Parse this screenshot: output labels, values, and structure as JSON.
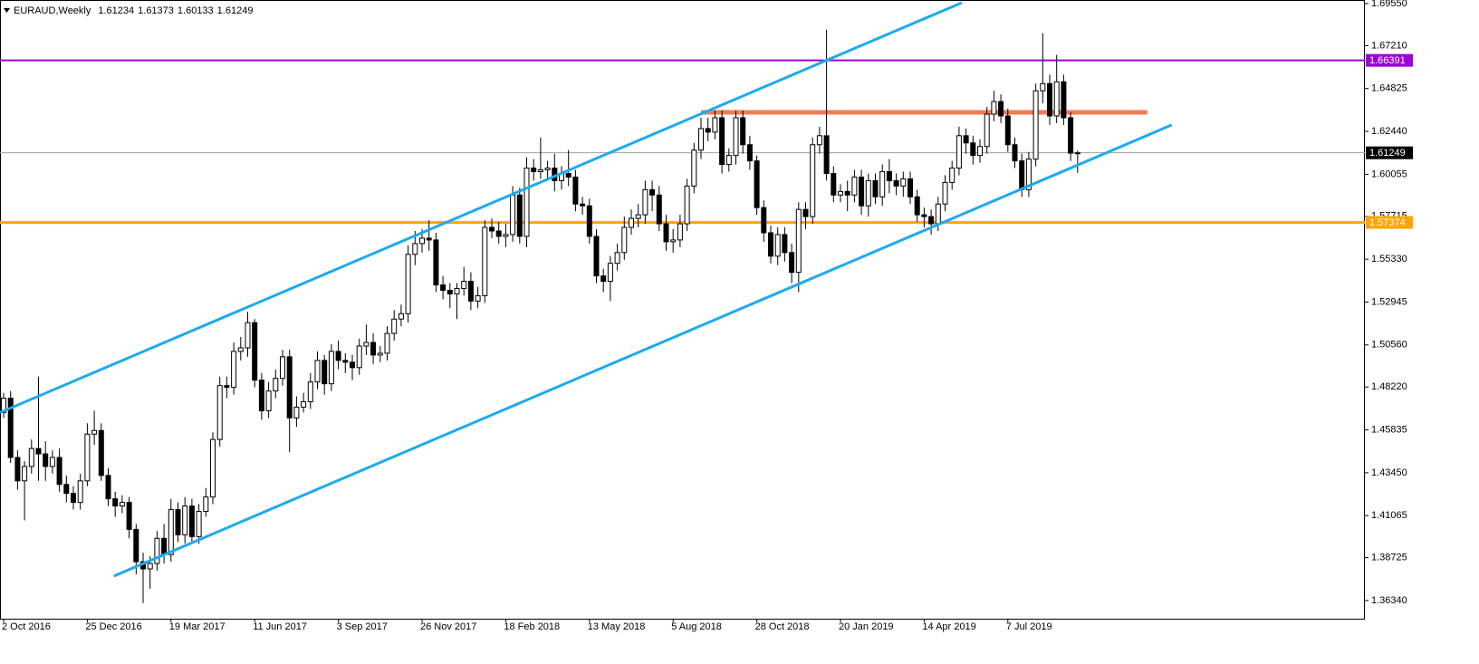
{
  "chart_data": {
    "type": "candlestick",
    "symbol": "EURAUD,Weekly",
    "categories": [
      "2 Oct 2016",
      null,
      null,
      null,
      null,
      null,
      null,
      null,
      null,
      null,
      null,
      null,
      "25 Dec 2016",
      null,
      null,
      null,
      null,
      null,
      null,
      null,
      null,
      null,
      null,
      null,
      "19 Mar 2017",
      null,
      null,
      null,
      null,
      null,
      null,
      null,
      null,
      null,
      null,
      null,
      "11 Jun 2017",
      null,
      null,
      null,
      null,
      null,
      null,
      null,
      null,
      null,
      null,
      null,
      "3 Sep 2017",
      null,
      null,
      null,
      null,
      null,
      null,
      null,
      null,
      null,
      null,
      null,
      "26 Nov 2017",
      null,
      null,
      null,
      null,
      null,
      null,
      null,
      null,
      null,
      null,
      null,
      "18 Feb 2018",
      null,
      null,
      null,
      null,
      null,
      null,
      null,
      null,
      null,
      null,
      null,
      "13 May 2018",
      null,
      null,
      null,
      null,
      null,
      null,
      null,
      null,
      null,
      null,
      null,
      "5 Aug 2018",
      null,
      null,
      null,
      null,
      null,
      null,
      null,
      null,
      null,
      null,
      null,
      "28 Oct 2018",
      null,
      null,
      null,
      null,
      null,
      null,
      null,
      null,
      null,
      null,
      null,
      "20 Jan 2019",
      null,
      null,
      null,
      null,
      null,
      null,
      null,
      null,
      null,
      null,
      null,
      "14 Apr 2019",
      null,
      null,
      null,
      null,
      null,
      null,
      null,
      null,
      null,
      null,
      null,
      "7 Jul 2019",
      null,
      null,
      null,
      null,
      null,
      null,
      null,
      null,
      null,
      null
    ],
    "open": [
      1.468,
      1.476,
      1.443,
      1.43,
      1.438,
      1.448,
      1.445,
      1.438,
      1.443,
      1.428,
      1.423,
      1.418,
      1.43,
      1.456,
      1.458,
      1.433,
      1.42,
      1.416,
      1.418,
      1.403,
      1.385,
      1.381,
      1.384,
      1.398,
      1.389,
      1.414,
      1.4,
      1.416,
      1.399,
      1.413,
      1.421,
      1.453,
      1.483,
      1.482,
      1.502,
      1.504,
      1.518,
      1.486,
      1.469,
      1.48,
      1.487,
      1.499,
      1.465,
      1.471,
      1.474,
      1.485,
      1.497,
      1.484,
      1.502,
      1.497,
      1.496,
      1.493,
      1.505,
      1.507,
      1.5,
      1.501,
      1.512,
      1.52,
      1.523,
      1.556,
      1.562,
      1.565,
      1.564,
      1.539,
      1.536,
      1.534,
      1.537,
      1.541,
      1.53,
      1.533,
      1.571,
      1.569,
      1.566,
      1.567,
      1.589,
      1.566,
      1.604,
      1.602,
      1.603,
      1.604,
      1.597,
      1.601,
      1.599,
      1.584,
      1.583,
      1.566,
      1.544,
      1.541,
      1.551,
      1.557,
      1.571,
      1.576,
      1.578,
      1.592,
      1.589,
      1.573,
      1.563,
      1.564,
      1.573,
      1.594,
      1.614,
      1.626,
      1.624,
      1.632,
      1.606,
      1.611,
      1.632,
      1.617,
      1.608,
      1.582,
      1.568,
      1.555,
      1.567,
      1.557,
      1.546,
      1.581,
      1.577,
      1.617,
      1.622,
      1.601,
      1.589,
      1.591,
      1.589,
      1.599,
      1.583,
      1.597,
      1.588,
      1.602,
      1.597,
      1.594,
      1.598,
      1.588,
      1.578,
      1.577,
      1.573,
      1.584,
      1.596,
      1.604,
      1.622,
      1.618,
      1.611,
      1.616,
      1.634,
      1.641,
      1.633,
      1.617,
      1.608,
      1.592,
      1.609,
      1.647,
      1.651,
      1.633,
      1.652,
      1.632,
      1.61234
    ],
    "high": [
      1.479,
      1.48,
      1.447,
      1.441,
      1.453,
      1.488,
      1.452,
      1.447,
      1.448,
      1.433,
      1.427,
      1.434,
      1.462,
      1.469,
      1.462,
      1.437,
      1.424,
      1.422,
      1.421,
      1.406,
      1.39,
      1.388,
      1.402,
      1.406,
      1.42,
      1.418,
      1.421,
      1.42,
      1.417,
      1.426,
      1.457,
      1.488,
      1.488,
      1.507,
      1.51,
      1.524,
      1.52,
      1.49,
      1.485,
      1.492,
      1.503,
      1.503,
      1.477,
      1.479,
      1.49,
      1.502,
      1.5,
      1.506,
      1.508,
      1.501,
      1.5,
      1.509,
      1.517,
      1.512,
      1.505,
      1.516,
      1.525,
      1.528,
      1.561,
      1.569,
      1.57,
      1.575,
      1.568,
      1.544,
      1.54,
      1.54,
      1.549,
      1.546,
      1.538,
      1.575,
      1.576,
      1.574,
      1.573,
      1.594,
      1.593,
      1.61,
      1.609,
      1.621,
      1.608,
      1.612,
      1.605,
      1.614,
      1.603,
      1.588,
      1.587,
      1.57,
      1.548,
      1.555,
      1.562,
      1.577,
      1.581,
      1.584,
      1.597,
      1.597,
      1.594,
      1.578,
      1.57,
      1.578,
      1.598,
      1.618,
      1.632,
      1.632,
      1.636,
      1.636,
      1.615,
      1.636,
      1.636,
      1.622,
      1.611,
      1.586,
      1.572,
      1.571,
      1.571,
      1.562,
      1.585,
      1.585,
      1.621,
      1.627,
      1.681,
      1.605,
      1.595,
      1.597,
      1.603,
      1.603,
      1.601,
      1.601,
      1.606,
      1.609,
      1.601,
      1.602,
      1.602,
      1.592,
      1.582,
      1.581,
      1.588,
      1.6,
      1.608,
      1.627,
      1.626,
      1.622,
      1.62,
      1.638,
      1.647,
      1.645,
      1.637,
      1.621,
      1.612,
      1.613,
      1.651,
      1.679,
      1.656,
      1.667,
      1.656,
      1.635,
      1.61373
    ],
    "low": [
      1.465,
      1.44,
      1.425,
      1.408,
      1.434,
      1.43,
      1.43,
      1.434,
      1.424,
      1.418,
      1.414,
      1.414,
      1.427,
      1.45,
      1.43,
      1.416,
      1.41,
      1.412,
      1.398,
      1.378,
      1.362,
      1.37,
      1.38,
      1.384,
      1.385,
      1.396,
      1.395,
      1.395,
      1.395,
      1.41,
      1.417,
      1.449,
      1.476,
      1.478,
      1.497,
      1.499,
      1.482,
      1.464,
      1.465,
      1.476,
      1.483,
      1.446,
      1.46,
      1.468,
      1.47,
      1.481,
      1.478,
      1.48,
      1.492,
      1.49,
      1.486,
      1.489,
      1.5,
      1.495,
      1.496,
      1.497,
      1.508,
      1.516,
      1.518,
      1.55,
      1.557,
      1.558,
      1.535,
      1.531,
      1.526,
      1.52,
      1.533,
      1.525,
      1.526,
      1.529,
      1.565,
      1.562,
      1.56,
      1.563,
      1.562,
      1.56,
      1.597,
      1.598,
      1.598,
      1.591,
      1.592,
      1.594,
      1.58,
      1.578,
      1.562,
      1.54,
      1.535,
      1.53,
      1.547,
      1.553,
      1.567,
      1.571,
      1.573,
      1.58,
      1.569,
      1.558,
      1.557,
      1.56,
      1.569,
      1.59,
      1.609,
      1.619,
      1.62,
      1.601,
      1.602,
      1.606,
      1.612,
      1.603,
      1.578,
      1.563,
      1.551,
      1.55,
      1.552,
      1.54,
      1.535,
      1.57,
      1.573,
      1.612,
      1.597,
      1.585,
      1.585,
      1.58,
      1.585,
      1.578,
      1.577,
      1.584,
      1.583,
      1.59,
      1.589,
      1.588,
      1.584,
      1.574,
      1.571,
      1.567,
      1.569,
      1.58,
      1.592,
      1.6,
      1.612,
      1.606,
      1.607,
      1.612,
      1.63,
      1.629,
      1.613,
      1.604,
      1.588,
      1.588,
      1.605,
      1.64,
      1.628,
      1.629,
      1.628,
      1.608,
      1.60133
    ],
    "close": [
      1.476,
      1.443,
      1.43,
      1.438,
      1.448,
      1.445,
      1.438,
      1.443,
      1.428,
      1.423,
      1.418,
      1.43,
      1.456,
      1.458,
      1.433,
      1.42,
      1.416,
      1.418,
      1.403,
      1.385,
      1.381,
      1.384,
      1.398,
      1.389,
      1.414,
      1.4,
      1.416,
      1.399,
      1.413,
      1.421,
      1.453,
      1.483,
      1.482,
      1.502,
      1.504,
      1.518,
      1.486,
      1.469,
      1.48,
      1.487,
      1.499,
      1.465,
      1.471,
      1.474,
      1.485,
      1.497,
      1.484,
      1.502,
      1.497,
      1.496,
      1.493,
      1.505,
      1.507,
      1.5,
      1.501,
      1.512,
      1.52,
      1.523,
      1.556,
      1.562,
      1.565,
      1.564,
      1.539,
      1.536,
      1.534,
      1.537,
      1.541,
      1.53,
      1.533,
      1.571,
      1.569,
      1.566,
      1.567,
      1.589,
      1.566,
      1.604,
      1.602,
      1.603,
      1.604,
      1.597,
      1.601,
      1.599,
      1.584,
      1.583,
      1.566,
      1.544,
      1.541,
      1.551,
      1.557,
      1.571,
      1.576,
      1.578,
      1.592,
      1.589,
      1.573,
      1.563,
      1.564,
      1.573,
      1.594,
      1.614,
      1.626,
      1.624,
      1.632,
      1.606,
      1.611,
      1.632,
      1.617,
      1.608,
      1.582,
      1.568,
      1.555,
      1.567,
      1.557,
      1.546,
      1.581,
      1.577,
      1.617,
      1.622,
      1.601,
      1.589,
      1.591,
      1.589,
      1.599,
      1.583,
      1.597,
      1.588,
      1.602,
      1.597,
      1.594,
      1.598,
      1.588,
      1.578,
      1.577,
      1.573,
      1.584,
      1.596,
      1.604,
      1.622,
      1.618,
      1.611,
      1.616,
      1.634,
      1.641,
      1.633,
      1.617,
      1.608,
      1.592,
      1.609,
      1.647,
      1.651,
      1.633,
      1.652,
      1.632,
      1.6123,
      1.61249
    ],
    "ylim": [
      1.3533,
      1.6975
    ],
    "yticks": [
      {
        "value": 1.6955,
        "label": "1.69550"
      },
      {
        "value": 1.6721,
        "label": "1.67210"
      },
      1.64825,
      {
        "value": 1.6244,
        "label": "1.62440"
      },
      1.60055,
      1.57715,
      {
        "value": 1.5533,
        "label": "1.55330"
      },
      1.52945,
      {
        "value": 1.5056,
        "label": "1.50560"
      },
      {
        "value": 1.4822,
        "label": "1.48220"
      },
      1.45835,
      {
        "value": 1.4345,
        "label": "1.43450"
      },
      1.41065,
      1.38725,
      {
        "value": 1.3634,
        "label": "1.36340"
      }
    ],
    "up_color": "#ffffff",
    "down_color": "#000000",
    "levels": [
      {
        "value": 1.66391,
        "color": "#9b00d8"
      },
      {
        "value": 1.57374,
        "color": "#ffa500"
      }
    ],
    "resistance": {
      "value": 1.635,
      "x": [
        100,
        164
      ],
      "color": "#f47a55"
    },
    "channel_color": "#1eaaee",
    "channel": [
      {
        "x": [
          -0.5,
          137.4
        ],
        "y": [
          1.468,
          1.696
        ]
      },
      {
        "x": [
          15.8,
          167.5
        ],
        "y": [
          1.377,
          1.628
        ]
      }
    ]
  }
}
